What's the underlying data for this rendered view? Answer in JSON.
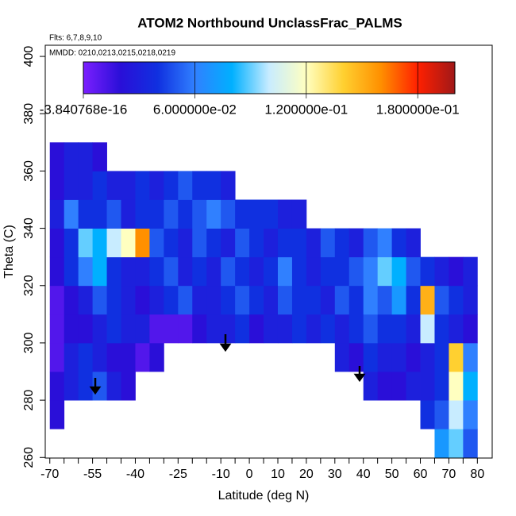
{
  "chart_data": {
    "type": "heatmap",
    "title": "ATOM2 Northbound UnclassFrac_PALMS",
    "subtitle": "Flts: 6,7,8,9,10",
    "note": "MMDD: 0210,0213,0215,0218,0219",
    "x_label": "Latitude (deg N)",
    "y_label": "Theta (C)",
    "xlim": [
      -71.6,
      85.2
    ],
    "ylim": [
      259.8,
      403.9
    ],
    "xticks": [
      -70,
      -55,
      -40,
      -25,
      -10,
      0,
      10,
      20,
      30,
      40,
      50,
      60,
      70,
      80
    ],
    "xminorticks": [
      -65,
      -60,
      -50,
      -45,
      -35,
      -30,
      -20,
      -15,
      -5,
      5,
      15,
      25,
      35,
      45,
      55,
      65,
      75
    ],
    "yticks": [
      260,
      280,
      300,
      320,
      340,
      360,
      380,
      400
    ],
    "colorbar_lim": [
      -3.840768e-16,
      0.2
    ],
    "colorbar_ticks": [
      {
        "value": -3.840768e-16,
        "label": "-3.840768e-16"
      },
      {
        "value": 0.06,
        "label": "6.000000e-02"
      },
      {
        "value": 0.12,
        "label": "1.200000e-01"
      },
      {
        "value": 0.18,
        "label": "1.800000e-01"
      }
    ],
    "colors": [
      "#7b1fff",
      "#2a0fd8",
      "#1030e0",
      "#3080ff",
      "#00b0ff",
      "#c8ecff",
      "#ffffc0",
      "#ffd030",
      "#ff9000",
      "#ff2000",
      "#a01818"
    ],
    "x_edges": [
      -70,
      -65,
      -60,
      -55,
      -50,
      -45,
      -40,
      -35,
      -30,
      -25,
      -20,
      -15,
      -10,
      -5,
      0,
      5,
      10,
      15,
      20,
      25,
      30,
      35,
      40,
      45,
      50,
      55,
      60,
      65,
      70,
      75,
      80
    ],
    "y_edges": [
      260,
      270,
      280,
      290,
      300,
      310,
      320,
      330,
      340,
      350,
      360,
      370
    ],
    "values": [
      [
        null,
        null,
        null,
        null,
        null,
        null,
        null,
        null,
        null,
        null,
        null,
        null,
        null,
        null,
        null,
        null,
        null,
        null,
        null,
        null,
        null,
        null,
        null,
        null,
        null,
        null,
        null,
        0.07,
        0.09,
        0.05
      ],
      [
        0.02,
        null,
        null,
        null,
        null,
        null,
        null,
        null,
        null,
        null,
        null,
        null,
        null,
        null,
        null,
        null,
        null,
        null,
        null,
        null,
        null,
        null,
        null,
        null,
        null,
        null,
        0.04,
        0.05,
        0.1,
        0.06
      ],
      [
        0.02,
        0.03,
        0.04,
        0.05,
        0.03,
        0.02,
        null,
        null,
        null,
        null,
        null,
        null,
        null,
        null,
        null,
        null,
        null,
        null,
        null,
        null,
        null,
        null,
        0.03,
        0.02,
        0.02,
        0.03,
        0.03,
        0.04,
        0.12,
        0.08
      ],
      [
        0.01,
        0.03,
        0.04,
        0.03,
        0.02,
        0.02,
        0.01,
        0.02,
        null,
        null,
        null,
        null,
        null,
        null,
        null,
        null,
        null,
        null,
        null,
        null,
        0.03,
        0.02,
        0.04,
        0.03,
        0.03,
        0.02,
        0.03,
        0.04,
        0.14,
        0.06
      ],
      [
        0.01,
        0.02,
        0.02,
        0.03,
        0.04,
        0.03,
        0.03,
        0.01,
        0.01,
        0.01,
        0.02,
        0.03,
        0.03,
        0.04,
        0.02,
        0.03,
        0.03,
        0.04,
        0.03,
        0.04,
        0.03,
        0.04,
        0.05,
        0.04,
        0.04,
        0.03,
        0.1,
        0.04,
        0.03,
        0.02
      ],
      [
        0.01,
        0.02,
        0.03,
        0.05,
        0.04,
        0.03,
        0.02,
        0.03,
        0.04,
        0.05,
        0.03,
        0.03,
        0.04,
        0.05,
        0.04,
        0.03,
        0.05,
        0.04,
        0.04,
        0.03,
        0.05,
        0.04,
        0.06,
        0.05,
        0.07,
        0.04,
        0.15,
        0.05,
        0.04,
        0.03
      ],
      [
        0.02,
        0.04,
        0.06,
        0.08,
        0.04,
        0.03,
        0.03,
        0.04,
        0.05,
        0.03,
        0.04,
        0.03,
        0.05,
        0.04,
        0.03,
        0.04,
        0.06,
        0.04,
        0.03,
        0.04,
        0.04,
        0.05,
        0.06,
        0.09,
        0.08,
        0.05,
        0.04,
        0.03,
        0.02,
        0.03
      ],
      [
        0.02,
        0.04,
        0.09,
        0.08,
        0.1,
        0.12,
        0.16,
        0.05,
        0.04,
        0.03,
        0.05,
        0.04,
        0.03,
        0.05,
        0.04,
        0.03,
        0.04,
        0.04,
        0.03,
        0.05,
        0.04,
        0.03,
        0.05,
        0.06,
        0.04,
        0.03,
        null,
        null,
        null,
        null
      ],
      [
        0.03,
        0.06,
        0.04,
        0.04,
        0.05,
        0.03,
        0.04,
        0.04,
        0.05,
        0.04,
        0.05,
        0.06,
        0.05,
        0.04,
        0.04,
        0.04,
        0.03,
        0.03,
        null,
        null,
        null,
        null,
        null,
        null,
        null,
        null,
        null,
        null,
        null,
        null
      ],
      [
        0.02,
        0.03,
        0.03,
        0.04,
        0.03,
        0.03,
        0.04,
        0.03,
        0.04,
        0.05,
        0.04,
        0.04,
        0.03,
        null,
        null,
        null,
        null,
        null,
        null,
        null,
        null,
        null,
        null,
        null,
        null,
        null,
        null,
        null,
        null,
        null
      ],
      [
        0.02,
        0.03,
        0.03,
        0.02,
        null,
        null,
        null,
        null,
        null,
        null,
        null,
        null,
        null,
        null,
        null,
        null,
        null,
        null,
        null,
        null,
        null,
        null,
        null,
        null,
        null,
        null,
        null,
        null,
        null,
        null
      ]
    ]
  }
}
